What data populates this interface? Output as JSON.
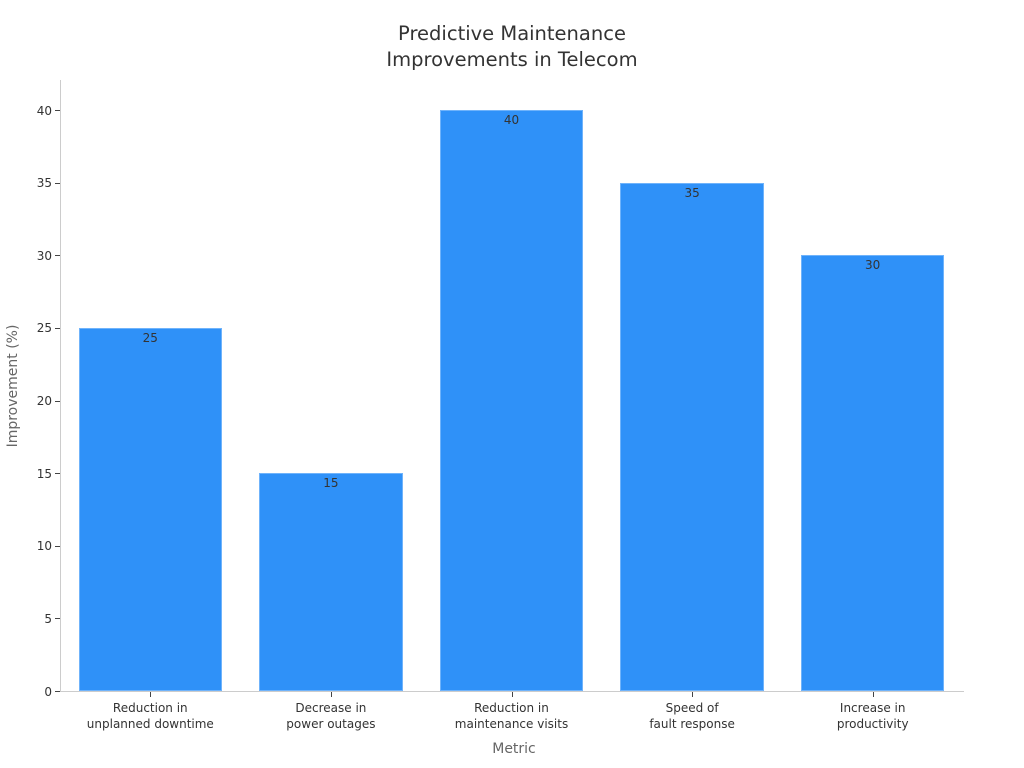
{
  "chart_data": {
    "type": "bar",
    "title": "Predictive Maintenance Improvements in Telecom",
    "title_lines": [
      "Predictive Maintenance",
      "Improvements in Telecom"
    ],
    "xlabel": "Metric",
    "ylabel": "Improvement (%)",
    "categories": [
      "Reduction in unplanned downtime",
      "Decrease in power outages",
      "Reduction in maintenance visits",
      "Speed of fault response",
      "Increase in productivity"
    ],
    "category_lines": [
      [
        "Reduction in",
        "unplanned downtime"
      ],
      [
        "Decrease in",
        "power outages"
      ],
      [
        "Reduction in",
        "maintenance visits"
      ],
      [
        "Speed of",
        "fault response"
      ],
      [
        "Increase in",
        "productivity"
      ]
    ],
    "values": [
      25,
      15,
      40,
      35,
      30
    ],
    "value_labels": [
      "25",
      "15",
      "40",
      "35",
      "30"
    ],
    "yticks": [
      "0",
      "5",
      "10",
      "15",
      "20",
      "25",
      "30",
      "35",
      "40"
    ],
    "ylim": [
      0,
      42
    ],
    "grid": false,
    "legend": null,
    "bar_color": "#2f91f8"
  }
}
